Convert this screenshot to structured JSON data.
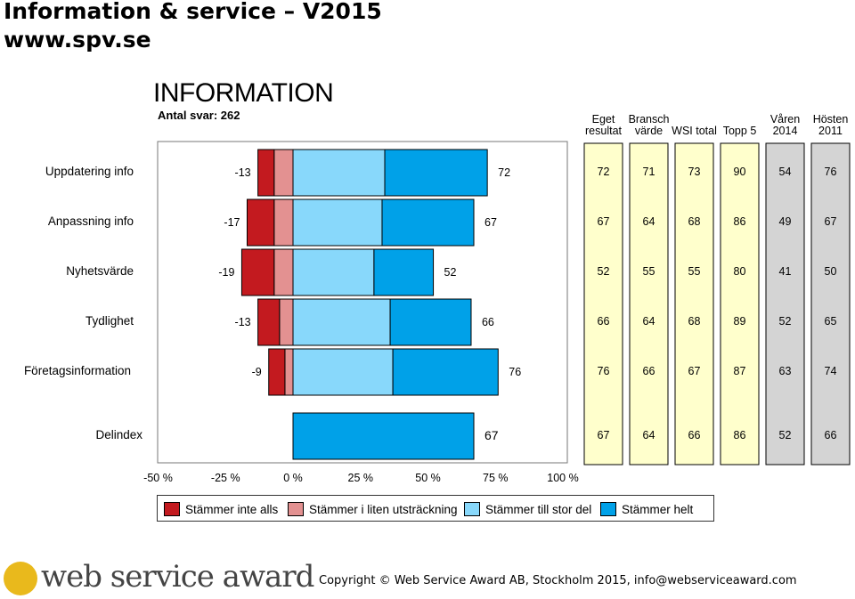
{
  "header": {
    "title": "Information & service – V2015",
    "url": "www.spv.se"
  },
  "section": {
    "title": "INFORMATION",
    "responses": "Antal svar: 262"
  },
  "columns": [
    {
      "line1": "Eget",
      "line2": "resultat"
    },
    {
      "line1": "Bransch",
      "line2": "värde"
    },
    {
      "line1": "",
      "line2": "WSI total"
    },
    {
      "line1": "",
      "line2": "Topp 5"
    },
    {
      "line1": "Våren",
      "line2": "2014"
    },
    {
      "line1": "Hösten",
      "line2": "2011"
    }
  ],
  "colors": {
    "dark_red": "#c31a1f",
    "light_red": "#e39191",
    "light_blue": "#88d8fb",
    "blue": "#00a1e8",
    "yellow_col": "#ffffcc",
    "gray_col": "#d4d4d4"
  },
  "chart_data": {
    "type": "bar",
    "orientation": "horizontal-diverging",
    "categories": [
      "Uppdatering info",
      "Anpassning info",
      "Nyhetsvärde",
      "Tydlighet",
      "Företagsinformation",
      "Delindex"
    ],
    "neg_labels": [
      "-13",
      "-17",
      "-19",
      "-13",
      "-9",
      ""
    ],
    "pos_labels": [
      "72",
      "67",
      "52",
      "66",
      "76",
      "67"
    ],
    "series": [
      {
        "name": "Stämmer inte alls",
        "values": [
          -6,
          -10,
          -12,
          -8,
          -6,
          0
        ]
      },
      {
        "name": "Stämmer i liten utsträckning",
        "values": [
          -7,
          -7,
          -7,
          -5,
          -3,
          0
        ]
      },
      {
        "name": "Stämmer till stor del",
        "values": [
          34,
          33,
          30,
          36,
          37,
          0
        ]
      },
      {
        "name": "Stämmer helt",
        "values": [
          38,
          34,
          22,
          30,
          39,
          67
        ]
      }
    ],
    "x_ticks": [
      "-50 %",
      "-25 %",
      "0 %",
      "25 %",
      "50 %",
      "75 %",
      "100 %"
    ],
    "xlim": [
      -50,
      100
    ],
    "table": [
      [
        "72",
        "71",
        "73",
        "90",
        "54",
        "76"
      ],
      [
        "67",
        "64",
        "68",
        "86",
        "49",
        "67"
      ],
      [
        "52",
        "55",
        "55",
        "80",
        "41",
        "50"
      ],
      [
        "66",
        "64",
        "68",
        "89",
        "52",
        "65"
      ],
      [
        "76",
        "66",
        "67",
        "87",
        "63",
        "74"
      ],
      [
        "67",
        "64",
        "66",
        "86",
        "52",
        "66"
      ]
    ]
  },
  "legend": [
    "Stämmer inte alls",
    "Stämmer i liten utsträckning",
    "Stämmer till stor del",
    "Stämmer helt"
  ],
  "footer": {
    "copyright": "Copyright © Web Service Award AB, Stockholm 2015, info@webserviceaward.com",
    "logo": "web service award"
  }
}
